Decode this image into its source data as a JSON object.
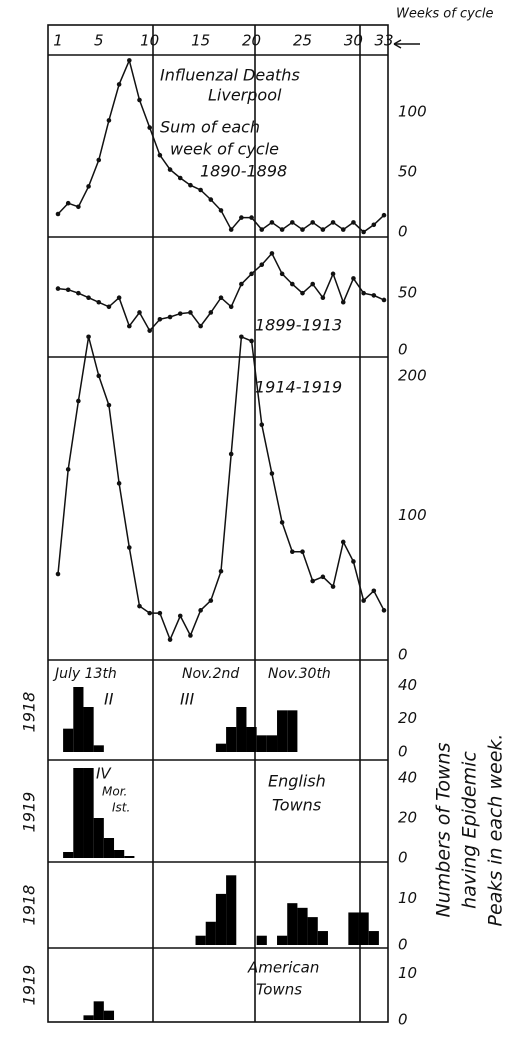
{
  "side_label": [
    "Numbers of Towns",
    "having Epidemic",
    "Peaks in each week."
  ],
  "chart_data": [
    {
      "type": "line",
      "xlabel": "Weeks of cycle",
      "xlim": [
        1,
        33
      ],
      "xticks": [
        1,
        5,
        10,
        15,
        20,
        25,
        30,
        33
      ],
      "annotations": [
        "Influenzal Deaths",
        "Liverpool",
        "Sum of each",
        "week of cycle",
        "1890-1898"
      ],
      "x": [
        1,
        2,
        3,
        4,
        5,
        6,
        7,
        8,
        9,
        10,
        11,
        12,
        13,
        14,
        15,
        16,
        17,
        18,
        19,
        20,
        21,
        22,
        23,
        24,
        25,
        26,
        27,
        28,
        29,
        30,
        31,
        32,
        33
      ],
      "values": [
        15,
        24,
        21,
        38,
        60,
        93,
        123,
        143,
        110,
        87,
        64,
        52,
        45,
        39,
        35,
        27,
        18,
        2,
        12,
        12,
        2,
        8,
        2,
        8,
        2,
        8,
        2,
        8,
        2,
        8,
        0,
        6,
        14
      ],
      "ylim": [
        0,
        150
      ],
      "yticks": [
        0,
        50,
        100
      ],
      "color": "#111111"
    },
    {
      "type": "line",
      "annotations": [
        "1899-1913"
      ],
      "x": [
        1,
        2,
        3,
        4,
        5,
        6,
        7,
        8,
        9,
        10,
        11,
        12,
        13,
        14,
        15,
        16,
        17,
        18,
        19,
        20,
        21,
        22,
        23,
        24,
        25,
        26,
        27,
        28,
        29,
        30,
        31,
        32,
        33
      ],
      "values": [
        54,
        53,
        50,
        46,
        42,
        38,
        46,
        21,
        33,
        17,
        27,
        29,
        32,
        33,
        21,
        33,
        46,
        38,
        58,
        67,
        75,
        85,
        67,
        58,
        50,
        58,
        46,
        67,
        42,
        63,
        50,
        48,
        44
      ],
      "ylim": [
        0,
        95
      ],
      "yticks": [
        0,
        50
      ],
      "color": "#111111"
    },
    {
      "type": "line",
      "annotations": [
        "1914-1919"
      ],
      "x": [
        1,
        2,
        3,
        4,
        5,
        6,
        7,
        8,
        9,
        10,
        11,
        12,
        13,
        14,
        15,
        16,
        17,
        18,
        19,
        20,
        21,
        22,
        23,
        24,
        25,
        26,
        27,
        28,
        29,
        30,
        31,
        32,
        33
      ],
      "values": [
        58,
        133,
        182,
        228,
        200,
        179,
        123,
        77,
        35,
        30,
        30,
        11,
        28,
        14,
        32,
        39,
        60,
        144,
        228,
        225,
        165,
        130,
        95,
        74,
        74,
        53,
        56,
        49,
        81,
        67,
        39,
        46,
        32
      ],
      "ylim": [
        0,
        235
      ],
      "yticks": [
        0,
        100,
        200
      ],
      "color": "#111111"
    },
    {
      "type": "bar",
      "year": "1918",
      "annotations": [
        "July 13th",
        "Nov.2nd",
        "Nov.30th",
        "II",
        "III"
      ],
      "x": [
        1,
        2,
        3,
        4,
        5,
        6,
        7,
        8,
        9,
        10,
        11,
        12,
        13,
        14,
        15,
        16,
        17,
        18,
        19,
        20,
        21,
        22,
        23,
        24,
        25,
        26,
        27,
        28,
        29,
        30,
        31,
        32,
        33
      ],
      "values": [
        0,
        14,
        39,
        27,
        4,
        0,
        0,
        0,
        0,
        0,
        0,
        0,
        0,
        0,
        0,
        0,
        5,
        15,
        27,
        15,
        10,
        10,
        25,
        25,
        0,
        0,
        0,
        0,
        0,
        0,
        0,
        0,
        0
      ],
      "ylim": [
        0,
        48
      ],
      "yticks": [
        0,
        20,
        40
      ],
      "color": "#000000"
    },
    {
      "type": "bar",
      "year": "1919",
      "annotations": [
        "IV",
        "Mor.",
        "Ist.",
        "English",
        "Towns"
      ],
      "x": [
        1,
        2,
        3,
        4,
        5,
        6,
        7,
        8,
        9,
        10,
        11,
        12,
        13,
        14,
        15,
        16,
        17,
        18,
        19,
        20,
        21,
        22,
        23,
        24,
        25,
        26,
        27,
        28,
        29,
        30,
        31,
        32,
        33
      ],
      "values": [
        0,
        3,
        45,
        45,
        20,
        10,
        4,
        1,
        0,
        0,
        0,
        0,
        0,
        0,
        0,
        0,
        0,
        0,
        0,
        0,
        0,
        0,
        0,
        0,
        0,
        0,
        0,
        0,
        0,
        0,
        0,
        0,
        0
      ],
      "ylim": [
        0,
        48
      ],
      "yticks": [
        0,
        20,
        40
      ],
      "color": "#000000"
    },
    {
      "type": "bar",
      "year": "1918",
      "x": [
        1,
        2,
        3,
        4,
        5,
        6,
        7,
        8,
        9,
        10,
        11,
        12,
        13,
        14,
        15,
        16,
        17,
        18,
        19,
        20,
        21,
        22,
        23,
        24,
        25,
        26,
        27,
        28,
        29,
        30,
        31,
        32,
        33
      ],
      "values": [
        0,
        0,
        0,
        0,
        0,
        0,
        0,
        0,
        0,
        0,
        0,
        0,
        0,
        0,
        2,
        5,
        11,
        15,
        0,
        0,
        2,
        0,
        2,
        9,
        8,
        6,
        3,
        0,
        0,
        7,
        7,
        3,
        0
      ],
      "ylim": [
        0,
        17
      ],
      "yticks": [
        0,
        10
      ],
      "color": "#000000"
    },
    {
      "type": "bar",
      "year": "1919",
      "annotations": [
        "American",
        "Towns"
      ],
      "x": [
        1,
        2,
        3,
        4,
        5,
        6,
        7,
        8,
        9,
        10,
        11,
        12,
        13,
        14,
        15,
        16,
        17,
        18,
        19,
        20,
        21,
        22,
        23,
        24,
        25,
        26,
        27,
        28,
        29,
        30,
        31,
        32,
        33
      ],
      "values": [
        0,
        0,
        0,
        1,
        4,
        2,
        0,
        0,
        0,
        0,
        0,
        0,
        0,
        0,
        0,
        0,
        0,
        0,
        0,
        0,
        0,
        0,
        0,
        0,
        0,
        0,
        0,
        0,
        0,
        0,
        0,
        0,
        0
      ],
      "ylim": [
        0,
        15
      ],
      "yticks": [
        0,
        10
      ],
      "color": "#000000"
    }
  ]
}
